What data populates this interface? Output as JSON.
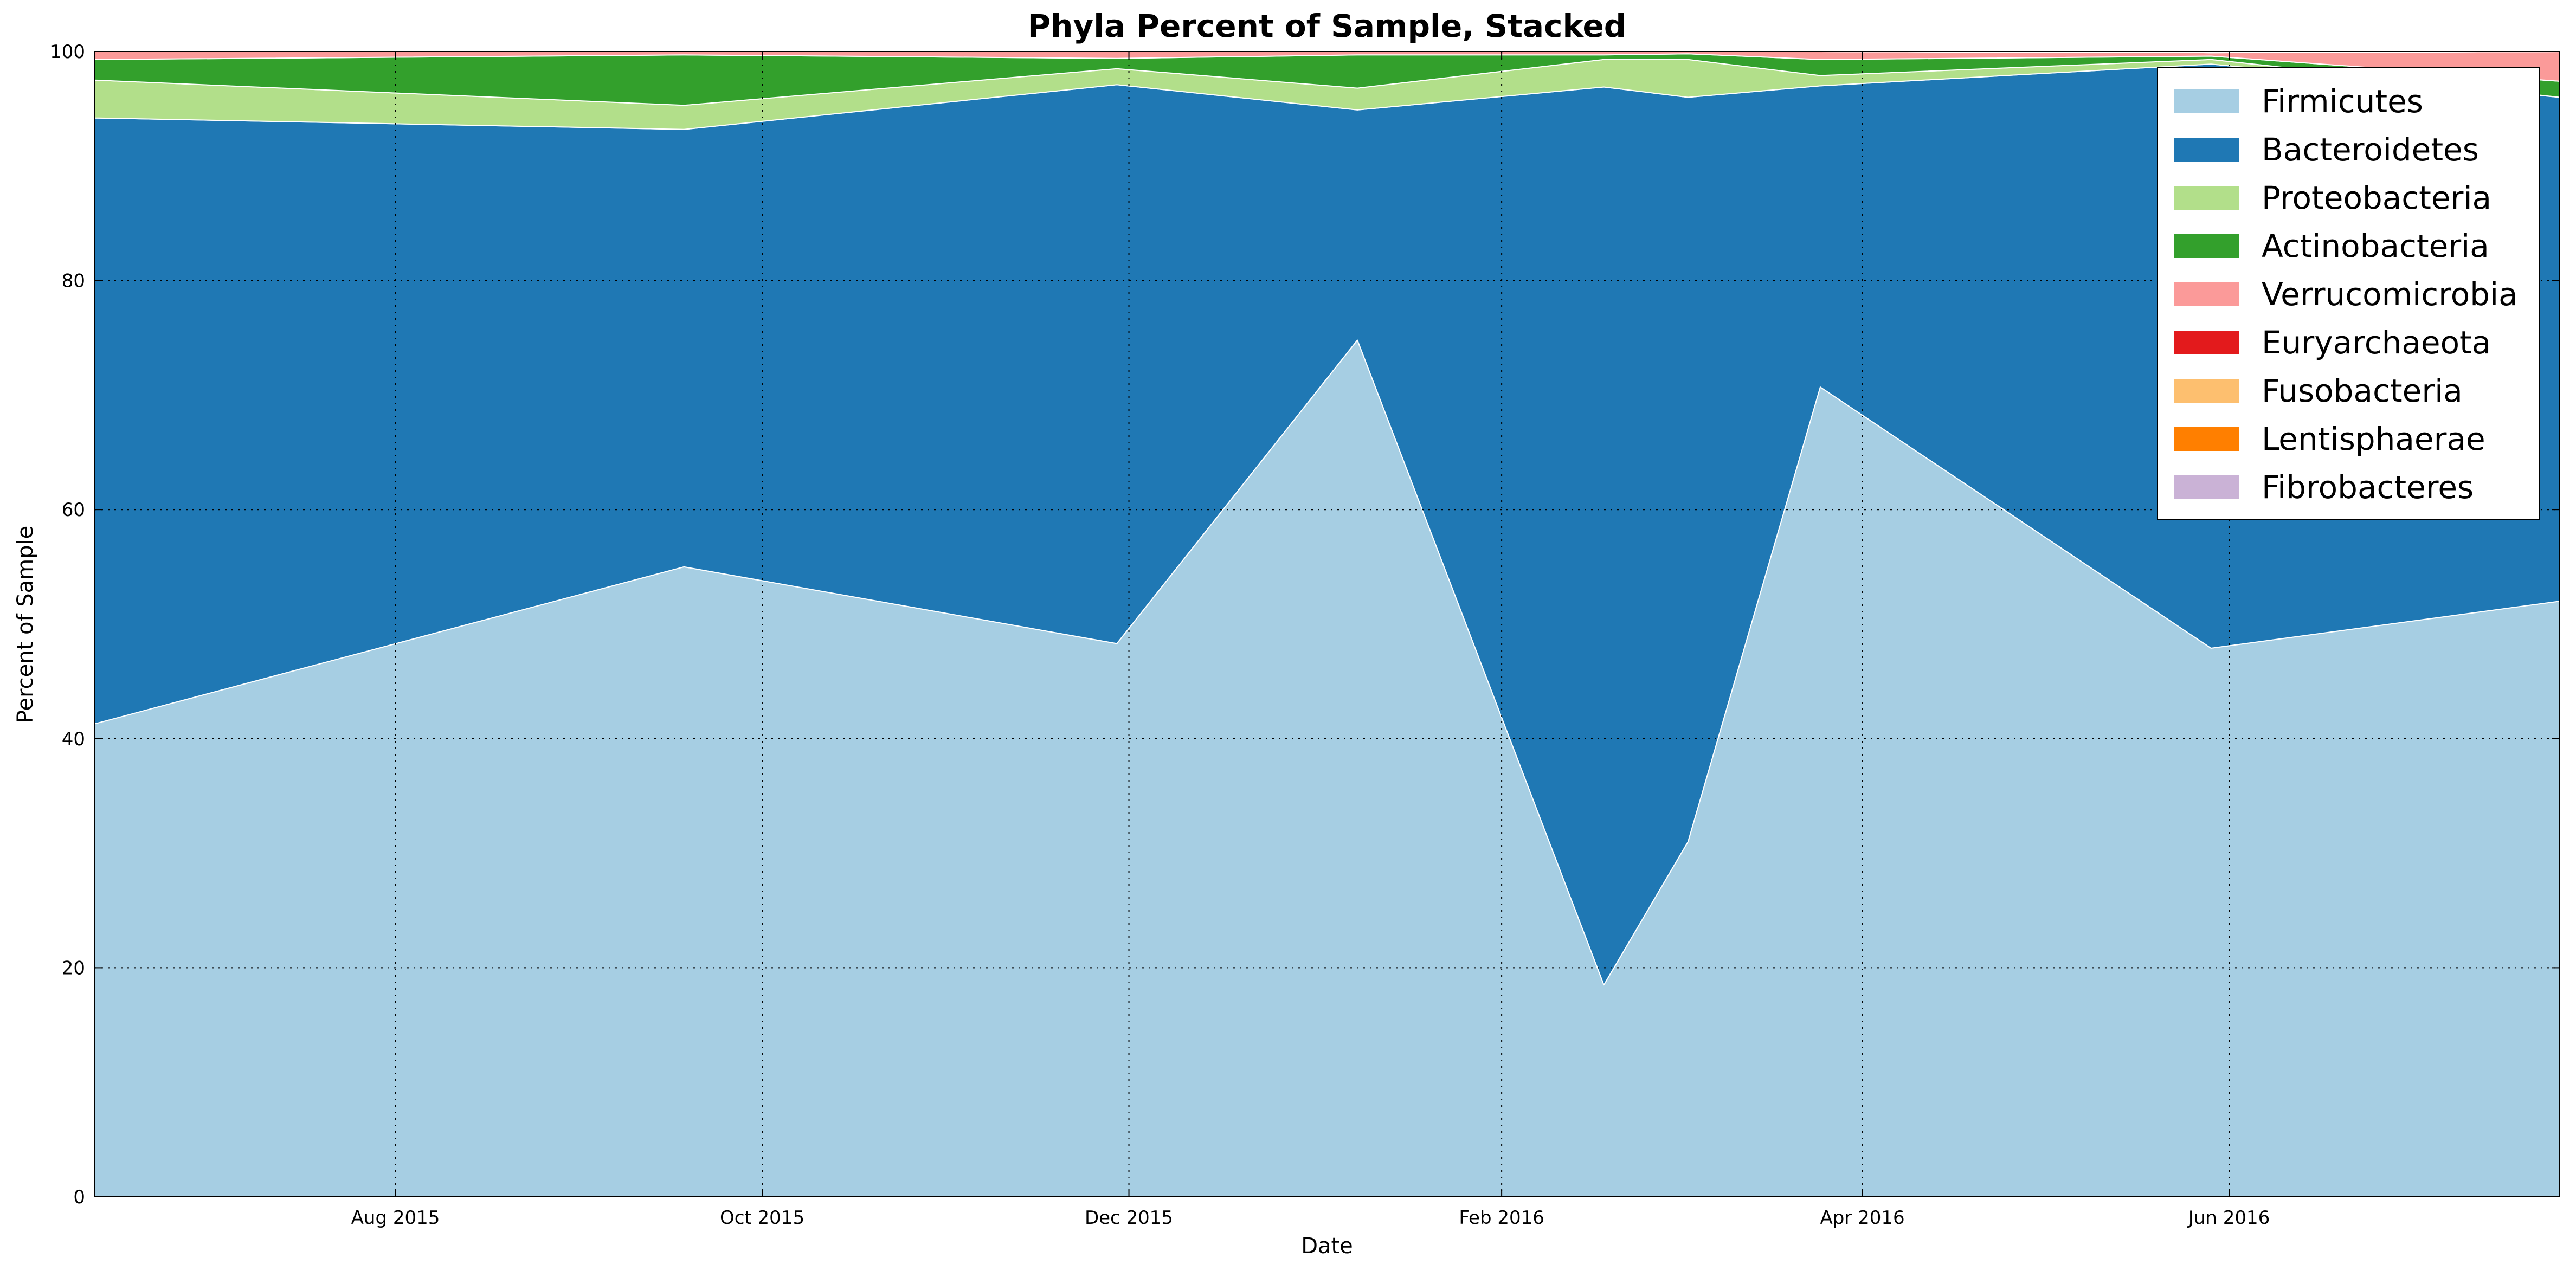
{
  "chart_data": {
    "type": "area",
    "stacked": true,
    "title": "Phyla Percent of Sample, Stacked",
    "xlabel": "Date",
    "ylabel": "Percent of Sample",
    "ylim": [
      0,
      100
    ],
    "xlim": [
      "2015-06-12",
      "2016-07-26"
    ],
    "x_ticks": [
      {
        "date": "2015-08-01",
        "label": "Aug 2015"
      },
      {
        "date": "2015-10-01",
        "label": "Oct 2015"
      },
      {
        "date": "2015-12-01",
        "label": "Dec 2015"
      },
      {
        "date": "2016-02-01",
        "label": "Feb 2016"
      },
      {
        "date": "2016-04-01",
        "label": "Apr 2016"
      },
      {
        "date": "2016-06-01",
        "label": "Jun 2016"
      }
    ],
    "y_ticks": [
      0,
      20,
      40,
      60,
      80,
      100
    ],
    "grid": true,
    "legend_position": "top-right",
    "x": [
      "2015-06-12",
      "2015-09-18",
      "2015-11-29",
      "2016-01-08",
      "2016-02-18",
      "2016-03-03",
      "2016-03-25",
      "2016-05-29",
      "2016-07-26"
    ],
    "series": [
      {
        "name": "Firmicutes",
        "color": "#a6cee3",
        "values": [
          41.3,
          55.0,
          48.3,
          74.8,
          18.5,
          31.0,
          70.7,
          47.9,
          52.0
        ]
      },
      {
        "name": "Bacteroidetes",
        "color": "#1f78b4",
        "values": [
          52.9,
          38.2,
          48.8,
          20.1,
          78.4,
          65.0,
          26.3,
          51.0,
          44.0
        ]
      },
      {
        "name": "Proteobacteria",
        "color": "#b2df8a",
        "values": [
          3.3,
          2.1,
          1.4,
          1.9,
          2.4,
          3.3,
          0.9,
          0.4,
          0.0
        ]
      },
      {
        "name": "Actinobacteria",
        "color": "#33a02c",
        "values": [
          1.8,
          4.4,
          0.9,
          2.9,
          0.4,
          0.5,
          1.4,
          0.3,
          1.4
        ]
      },
      {
        "name": "Verrucomicrobia",
        "color": "#fb9a99",
        "values": [
          0.7,
          0.3,
          0.6,
          0.3,
          0.3,
          0.2,
          0.7,
          0.3,
          2.6
        ]
      },
      {
        "name": "Euryarchaeota",
        "color": "#e31a1c",
        "values": [
          0,
          0,
          0,
          0,
          0,
          0,
          0,
          0,
          0
        ]
      },
      {
        "name": "Fusobacteria",
        "color": "#fdbf6f",
        "values": [
          0,
          0,
          0,
          0,
          0,
          0,
          0,
          0,
          0
        ]
      },
      {
        "name": "Lentisphaerae",
        "color": "#ff7f00",
        "values": [
          0,
          0,
          0,
          0,
          0,
          0,
          0,
          0,
          0
        ]
      },
      {
        "name": "Fibrobacteres",
        "color": "#cab2d6",
        "values": [
          0,
          0,
          0,
          0,
          0,
          0,
          0,
          0,
          0
        ]
      }
    ]
  }
}
